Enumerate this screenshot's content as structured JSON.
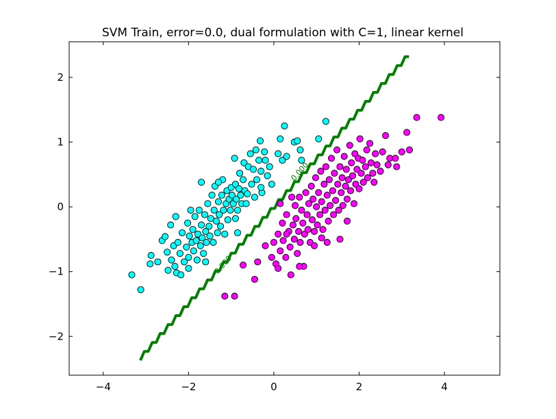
{
  "chart_data": {
    "type": "scatter",
    "title": "SVM Train, error=0.0, dual formulation with C=1, linear kernel",
    "xlabel": "",
    "ylabel": "",
    "xlim": [
      -4.8,
      5.3
    ],
    "ylim": [
      -2.6,
      2.55
    ],
    "xticks": [
      -4,
      -2,
      0,
      2,
      4
    ],
    "yticks": [
      -2,
      -1,
      0,
      1,
      2
    ],
    "xtick_labels": [
      "−4",
      "−2",
      "0",
      "2",
      "4"
    ],
    "ytick_labels": [
      "−2",
      "−1",
      "0",
      "1",
      "2"
    ],
    "grid": false,
    "legend": "none",
    "colors": {
      "class_a": "#00ffff",
      "class_b": "#ff00ff",
      "decision_boundary": "#007f00",
      "marker_edge": "#000000"
    },
    "decision_boundary": {
      "type": "line",
      "points": [
        [
          -3.13,
          -2.37
        ],
        [
          3.17,
          2.32
        ]
      ],
      "label": "0.000",
      "label_positions": [
        [
          0.65,
          0.52
        ],
        [
          -1.15,
          -0.92
        ]
      ]
    },
    "series": [
      {
        "class": "cyan",
        "points": [
          [
            -3.33,
            -1.05
          ],
          [
            -3.12,
            -1.28
          ],
          [
            -2.9,
            -0.88
          ],
          [
            -2.88,
            -0.75
          ],
          [
            -2.72,
            -0.85
          ],
          [
            -2.62,
            -0.52
          ],
          [
            -2.55,
            -0.46
          ],
          [
            -2.5,
            -0.7
          ],
          [
            -2.48,
            -0.98
          ],
          [
            -2.42,
            -0.28
          ],
          [
            -2.4,
            -0.82
          ],
          [
            -2.35,
            -0.6
          ],
          [
            -2.32,
            -0.92
          ],
          [
            -2.28,
            -1.02
          ],
          [
            -2.25,
            -0.55
          ],
          [
            -2.2,
            -0.72
          ],
          [
            -2.18,
            -1.05
          ],
          [
            -2.15,
            -0.4
          ],
          [
            -2.1,
            -0.85
          ],
          [
            -2.05,
            -0.62
          ],
          [
            -2.02,
            -0.25
          ],
          [
            -2.0,
            -0.78
          ],
          [
            -1.98,
            -0.45
          ],
          [
            -1.95,
            -0.05
          ],
          [
            -1.92,
            -0.55
          ],
          [
            -1.9,
            -0.35
          ],
          [
            -1.88,
            -0.68
          ],
          [
            -1.85,
            -0.15
          ],
          [
            -1.82,
            -0.52
          ],
          [
            -1.8,
            -0.82
          ],
          [
            -1.78,
            -0.42
          ],
          [
            -1.75,
            -0.05
          ],
          [
            -1.72,
            -0.6
          ],
          [
            -1.7,
            -0.28
          ],
          [
            -1.68,
            -0.48
          ],
          [
            -1.65,
            -0.72
          ],
          [
            -1.62,
            -0.12
          ],
          [
            -1.6,
            -0.38
          ],
          [
            -1.58,
            -0.55
          ],
          [
            -1.55,
            0.05
          ],
          [
            -1.52,
            -0.3
          ],
          [
            -1.5,
            -0.45
          ],
          [
            -1.48,
            -0.18
          ],
          [
            -1.45,
            0.18
          ],
          [
            -1.42,
            -0.55
          ],
          [
            -1.4,
            -0.05
          ],
          [
            -1.38,
            0.32
          ],
          [
            -1.35,
            -0.22
          ],
          [
            -1.32,
            -0.4
          ],
          [
            -1.3,
            0.08
          ],
          [
            -1.28,
            -0.12
          ],
          [
            -1.25,
            -0.3
          ],
          [
            -1.22,
            0.18
          ],
          [
            -1.2,
            0.42
          ],
          [
            -1.18,
            -0.05
          ],
          [
            -1.15,
            -0.42
          ],
          [
            -1.12,
            0.05
          ],
          [
            -1.1,
            0.25
          ],
          [
            -1.08,
            -0.2
          ],
          [
            -1.05,
            0.12
          ],
          [
            -1.02,
            -0.05
          ],
          [
            -1.0,
            0.3
          ],
          [
            -0.98,
            0.18
          ],
          [
            -0.95,
            0.05
          ],
          [
            -0.92,
            0.75
          ],
          [
            -0.9,
            0.35
          ],
          [
            -0.88,
            0.12
          ],
          [
            -0.85,
            -0.05
          ],
          [
            -0.82,
            0.28
          ],
          [
            -0.8,
            0.52
          ],
          [
            -0.78,
            0.18
          ],
          [
            -0.75,
            0.05
          ],
          [
            -0.72,
            0.42
          ],
          [
            -0.7,
            0.68
          ],
          [
            -0.68,
            0.25
          ],
          [
            -0.65,
            0.05
          ],
          [
            -0.6,
            0.62
          ],
          [
            -0.55,
            0.82
          ],
          [
            -0.52,
            0.35
          ],
          [
            -0.48,
            0.58
          ],
          [
            -0.45,
            0.15
          ],
          [
            -0.42,
            0.88
          ],
          [
            -0.4,
            0.42
          ],
          [
            -0.35,
            0.72
          ],
          [
            -0.32,
            1.02
          ],
          [
            -0.3,
            0.55
          ],
          [
            -0.28,
            0.22
          ],
          [
            -0.22,
            0.85
          ],
          [
            -0.2,
            0.72
          ],
          [
            -0.15,
            0.48
          ],
          [
            -0.1,
            0.62
          ],
          [
            -0.05,
            0.35
          ],
          [
            0.1,
            0.82
          ],
          [
            0.15,
            1.05
          ],
          [
            0.2,
            0.72
          ],
          [
            0.25,
            1.25
          ],
          [
            0.3,
            0.78
          ],
          [
            0.48,
            1.0
          ],
          [
            0.55,
            1.02
          ],
          [
            0.62,
            0.88
          ],
          [
            0.65,
            0.72
          ],
          [
            1.05,
            1.05
          ],
          [
            1.22,
            1.32
          ],
          [
            -0.85,
            -0.4
          ],
          [
            -1.6,
            -0.85
          ],
          [
            -2.0,
            -0.95
          ],
          [
            -1.7,
            0.38
          ],
          [
            -1.3,
            0.38
          ],
          [
            -0.3,
            0.3
          ],
          [
            -0.62,
            0.2
          ],
          [
            -0.9,
            -0.18
          ],
          [
            -2.3,
            -0.15
          ]
        ]
      },
      {
        "class": "magenta",
        "points": [
          [
            -1.15,
            -1.38
          ],
          [
            -0.92,
            -1.38
          ],
          [
            -0.72,
            -0.9
          ],
          [
            -0.45,
            -1.12
          ],
          [
            -0.38,
            -0.85
          ],
          [
            -0.2,
            -0.6
          ],
          [
            -0.05,
            -0.78
          ],
          [
            0.0,
            -0.55
          ],
          [
            0.05,
            -0.88
          ],
          [
            0.1,
            -0.95
          ],
          [
            0.1,
            -0.42
          ],
          [
            0.15,
            -0.68
          ],
          [
            0.2,
            -0.25
          ],
          [
            0.22,
            -0.52
          ],
          [
            0.28,
            -0.78
          ],
          [
            0.3,
            -0.12
          ],
          [
            0.35,
            -0.38
          ],
          [
            0.38,
            -0.62
          ],
          [
            0.4,
            -1.05
          ],
          [
            0.45,
            -0.28
          ],
          [
            0.48,
            -0.5
          ],
          [
            0.5,
            0.02
          ],
          [
            0.52,
            -0.18
          ],
          [
            0.55,
            -0.72
          ],
          [
            0.58,
            -0.38
          ],
          [
            0.6,
            0.15
          ],
          [
            0.62,
            -0.55
          ],
          [
            0.65,
            -0.05
          ],
          [
            0.68,
            -0.25
          ],
          [
            0.7,
            -0.92
          ],
          [
            0.72,
            -0.42
          ],
          [
            0.75,
            0.22
          ],
          [
            0.78,
            -0.12
          ],
          [
            0.8,
            -0.35
          ],
          [
            0.82,
            0.05
          ],
          [
            0.85,
            -0.55
          ],
          [
            0.88,
            0.32
          ],
          [
            0.9,
            -0.2
          ],
          [
            0.92,
            0.12
          ],
          [
            0.95,
            -0.38
          ],
          [
            0.98,
            0.45
          ],
          [
            1.0,
            0.0
          ],
          [
            1.02,
            -0.28
          ],
          [
            1.05,
            0.22
          ],
          [
            1.08,
            -0.12
          ],
          [
            1.1,
            0.55
          ],
          [
            1.12,
            0.08
          ],
          [
            1.15,
            -0.35
          ],
          [
            1.18,
            0.35
          ],
          [
            1.2,
            -0.05
          ],
          [
            1.22,
            0.62
          ],
          [
            1.25,
            0.18
          ],
          [
            1.28,
            -0.22
          ],
          [
            1.3,
            0.42
          ],
          [
            1.32,
            0.02
          ],
          [
            1.35,
            0.75
          ],
          [
            1.38,
            0.25
          ],
          [
            1.4,
            -0.12
          ],
          [
            1.42,
            0.52
          ],
          [
            1.45,
            0.1
          ],
          [
            1.48,
            0.88
          ],
          [
            1.5,
            0.35
          ],
          [
            1.52,
            -0.05
          ],
          [
            1.55,
            0.62
          ],
          [
            1.58,
            0.22
          ],
          [
            1.6,
            0.45
          ],
          [
            1.62,
            0.02
          ],
          [
            1.65,
            0.78
          ],
          [
            1.68,
            0.32
          ],
          [
            1.7,
            0.58
          ],
          [
            1.72,
            0.12
          ],
          [
            1.75,
            0.42
          ],
          [
            1.78,
            0.95
          ],
          [
            1.8,
            0.25
          ],
          [
            1.82,
            0.68
          ],
          [
            1.85,
            0.48
          ],
          [
            1.88,
            0.05
          ],
          [
            1.9,
            0.82
          ],
          [
            1.92,
            0.35
          ],
          [
            1.95,
            0.58
          ],
          [
            1.98,
            0.75
          ],
          [
            2.0,
            0.28
          ],
          [
            2.02,
            1.05
          ],
          [
            2.05,
            0.52
          ],
          [
            2.08,
            0.72
          ],
          [
            2.1,
            0.38
          ],
          [
            2.15,
            0.62
          ],
          [
            2.18,
            0.88
          ],
          [
            2.2,
            0.45
          ],
          [
            2.25,
            0.98
          ],
          [
            2.28,
            0.68
          ],
          [
            2.32,
            0.52
          ],
          [
            2.38,
            0.82
          ],
          [
            2.42,
            0.65
          ],
          [
            2.5,
            0.55
          ],
          [
            2.55,
            0.85
          ],
          [
            2.62,
            1.1
          ],
          [
            2.68,
            0.65
          ],
          [
            2.72,
            0.75
          ],
          [
            2.85,
            0.75
          ],
          [
            2.88,
            0.62
          ],
          [
            3.0,
            0.85
          ],
          [
            3.12,
            1.15
          ],
          [
            3.18,
            0.88
          ],
          [
            3.35,
            1.38
          ],
          [
            3.92,
            1.38
          ],
          [
            1.55,
            -0.5
          ],
          [
            1.25,
            -0.55
          ],
          [
            0.95,
            -0.6
          ],
          [
            0.6,
            -0.92
          ],
          [
            0.3,
            -0.42
          ],
          [
            0.15,
            0.05
          ],
          [
            0.42,
            0.15
          ],
          [
            1.12,
            -0.48
          ],
          [
            1.72,
            -0.22
          ],
          [
            2.35,
            0.38
          ]
        ]
      }
    ]
  }
}
